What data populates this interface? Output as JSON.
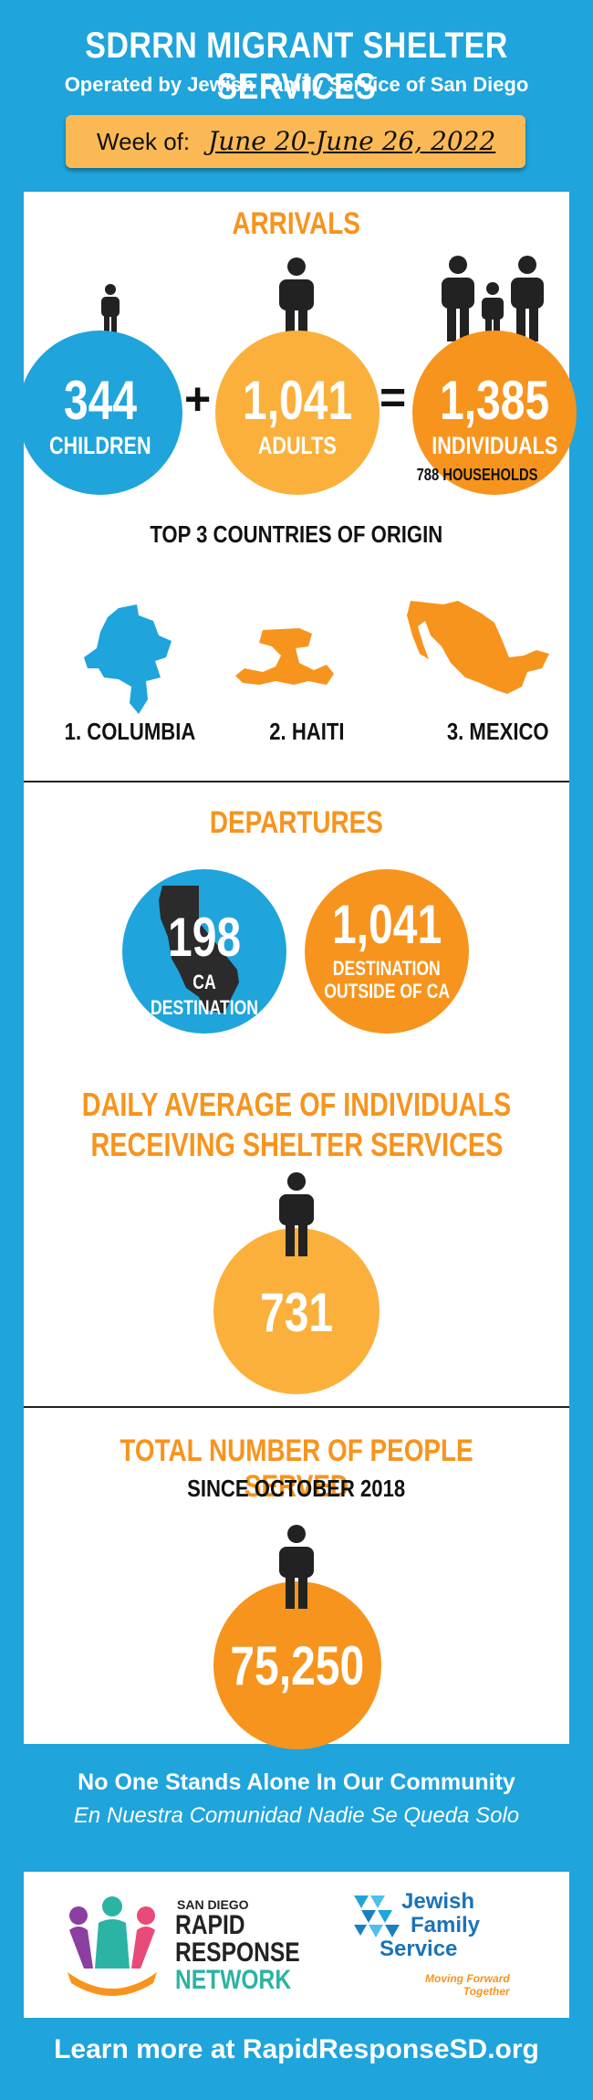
{
  "header": {
    "title": "SDRRN MIGRANT SHELTER SERVICES",
    "subtitle": "Operated by Jewish Family Service of San Diego",
    "week_label": "Week of:",
    "week_dates": "June 20-June 26, 2022"
  },
  "arrivals": {
    "title": "ARRIVALS",
    "children": {
      "value": "344",
      "label": "CHILDREN"
    },
    "adults": {
      "value": "1,041",
      "label": "ADULTS"
    },
    "individuals": {
      "value": "1,385",
      "label": "INDIVIDUALS"
    },
    "plus": "+",
    "equals": "=",
    "households": "788 HOUSEHOLDS"
  },
  "countries": {
    "title": "TOP 3 COUNTRIES OF ORIGIN",
    "items": [
      "1. COLUMBIA",
      "2. HAITI",
      "3. MEXICO"
    ]
  },
  "departures": {
    "title": "DEPARTURES",
    "ca": {
      "value": "198",
      "label": "CA DESTINATION"
    },
    "outside": {
      "value": "1,041",
      "label_line1": "DESTINATION",
      "label_line2": "OUTSIDE OF CA"
    }
  },
  "daily": {
    "title_line1": "DAILY AVERAGE OF INDIVIDUALS",
    "title_line2": "RECEIVING SHELTER SERVICES",
    "value": "731"
  },
  "total": {
    "title": "TOTAL NUMBER OF PEOPLE SERVED",
    "subtitle": "SINCE OCTOBER 2018",
    "value": "75,250"
  },
  "slogan": {
    "line1": "No One Stands Alone In Our Community",
    "line2": "En Nuestra Comunidad Nadie Se Queda Solo"
  },
  "footer": {
    "rrn_small": "SAN DIEGO",
    "rrn_line1": "RAPID",
    "rrn_line2": "RESPONSE",
    "rrn_line3": "NETWORK",
    "jfs_line1": "Jewish",
    "jfs_line2": "Family",
    "jfs_line3": "Service",
    "jfs_tag1": "Moving Forward",
    "jfs_tag2": "Together",
    "learn_more": "Learn more at RapidResponseSD.org"
  },
  "colors": {
    "blue": "#1fa4dc",
    "orange": "#f7941d",
    "amber": "#fbb03b",
    "week_box": "#fbb955"
  }
}
